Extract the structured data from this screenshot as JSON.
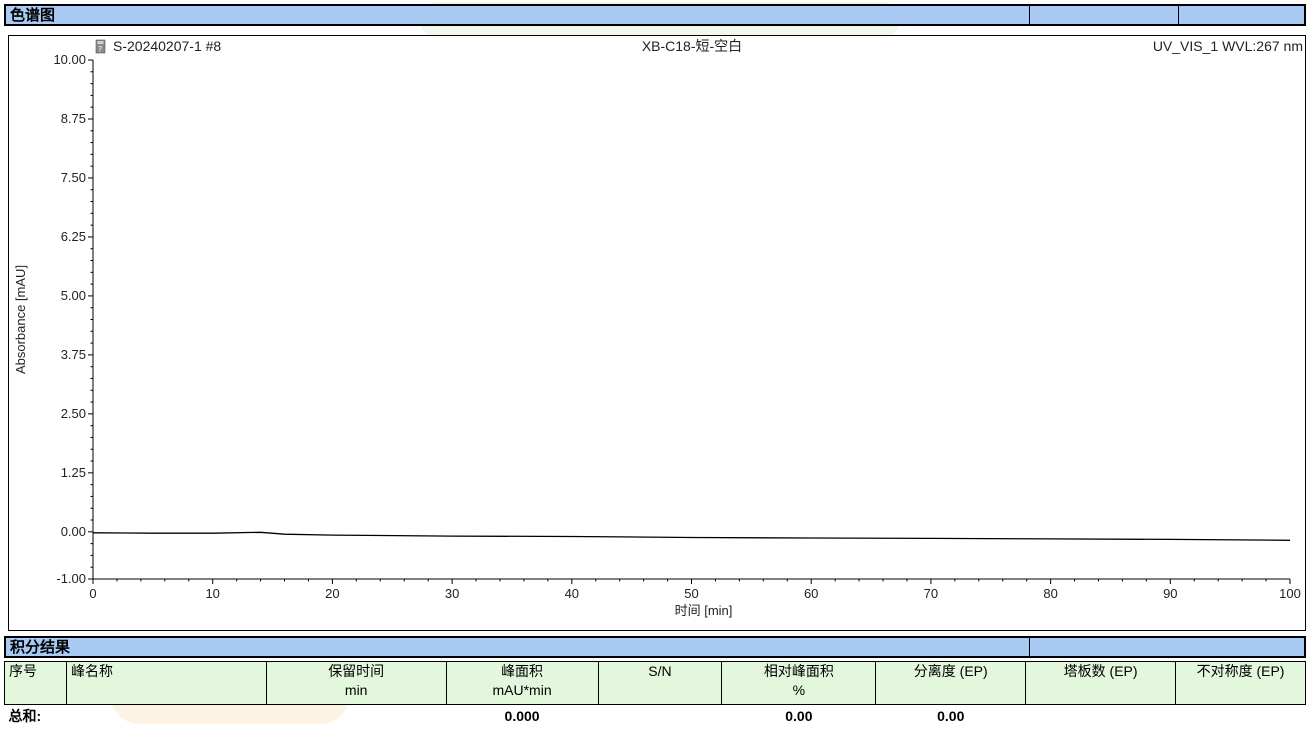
{
  "sections": {
    "chromatogram_title": "色谱图",
    "integration_title": "积分结果"
  },
  "chart_header": {
    "sample": "S-20240207-1 #8",
    "method": "XB-C18-短-空白",
    "channel": "UV_VIS_1 WVL:267 nm"
  },
  "chart_data": {
    "type": "line",
    "title": "",
    "xlabel": "时间 [min]",
    "ylabel": "Absorbance [mAU]",
    "xlim": [
      0,
      100
    ],
    "ylim": [
      -1.0,
      10.0
    ],
    "x_ticks": [
      "0",
      "10",
      "20",
      "30",
      "40",
      "50",
      "60",
      "70",
      "80",
      "90",
      "100"
    ],
    "y_ticks": [
      "10.00",
      "8.75",
      "7.50",
      "6.25",
      "5.00",
      "3.75",
      "2.50",
      "1.25",
      "0.00",
      "-1.00"
    ],
    "series": [
      {
        "x": [
          0,
          5,
          10,
          14,
          16,
          20,
          30,
          40,
          50,
          60,
          70,
          80,
          90,
          100
        ],
        "y": [
          -0.02,
          -0.03,
          -0.03,
          -0.01,
          -0.05,
          -0.07,
          -0.09,
          -0.1,
          -0.12,
          -0.13,
          -0.14,
          -0.15,
          -0.16,
          -0.18
        ]
      }
    ]
  },
  "table": {
    "headers": [
      {
        "label": "序号",
        "unit": ""
      },
      {
        "label": "峰名称",
        "unit": ""
      },
      {
        "label": "保留时间",
        "unit": "min"
      },
      {
        "label": "峰面积",
        "unit": "mAU*min"
      },
      {
        "label": "S/N",
        "unit": ""
      },
      {
        "label": "相对峰面积",
        "unit": "%"
      },
      {
        "label": "分离度 (EP)",
        "unit": ""
      },
      {
        "label": "塔板数 (EP)",
        "unit": ""
      },
      {
        "label": "不对称度 (EP)",
        "unit": ""
      }
    ],
    "summary": {
      "label": "总和:",
      "peak_area": "0.000",
      "relative_area": "0.00",
      "resolution": "0.00"
    }
  },
  "colors": {
    "header_bar": "#a9cbf3",
    "table_header": "#e2f7dc",
    "trace": "#000000"
  }
}
